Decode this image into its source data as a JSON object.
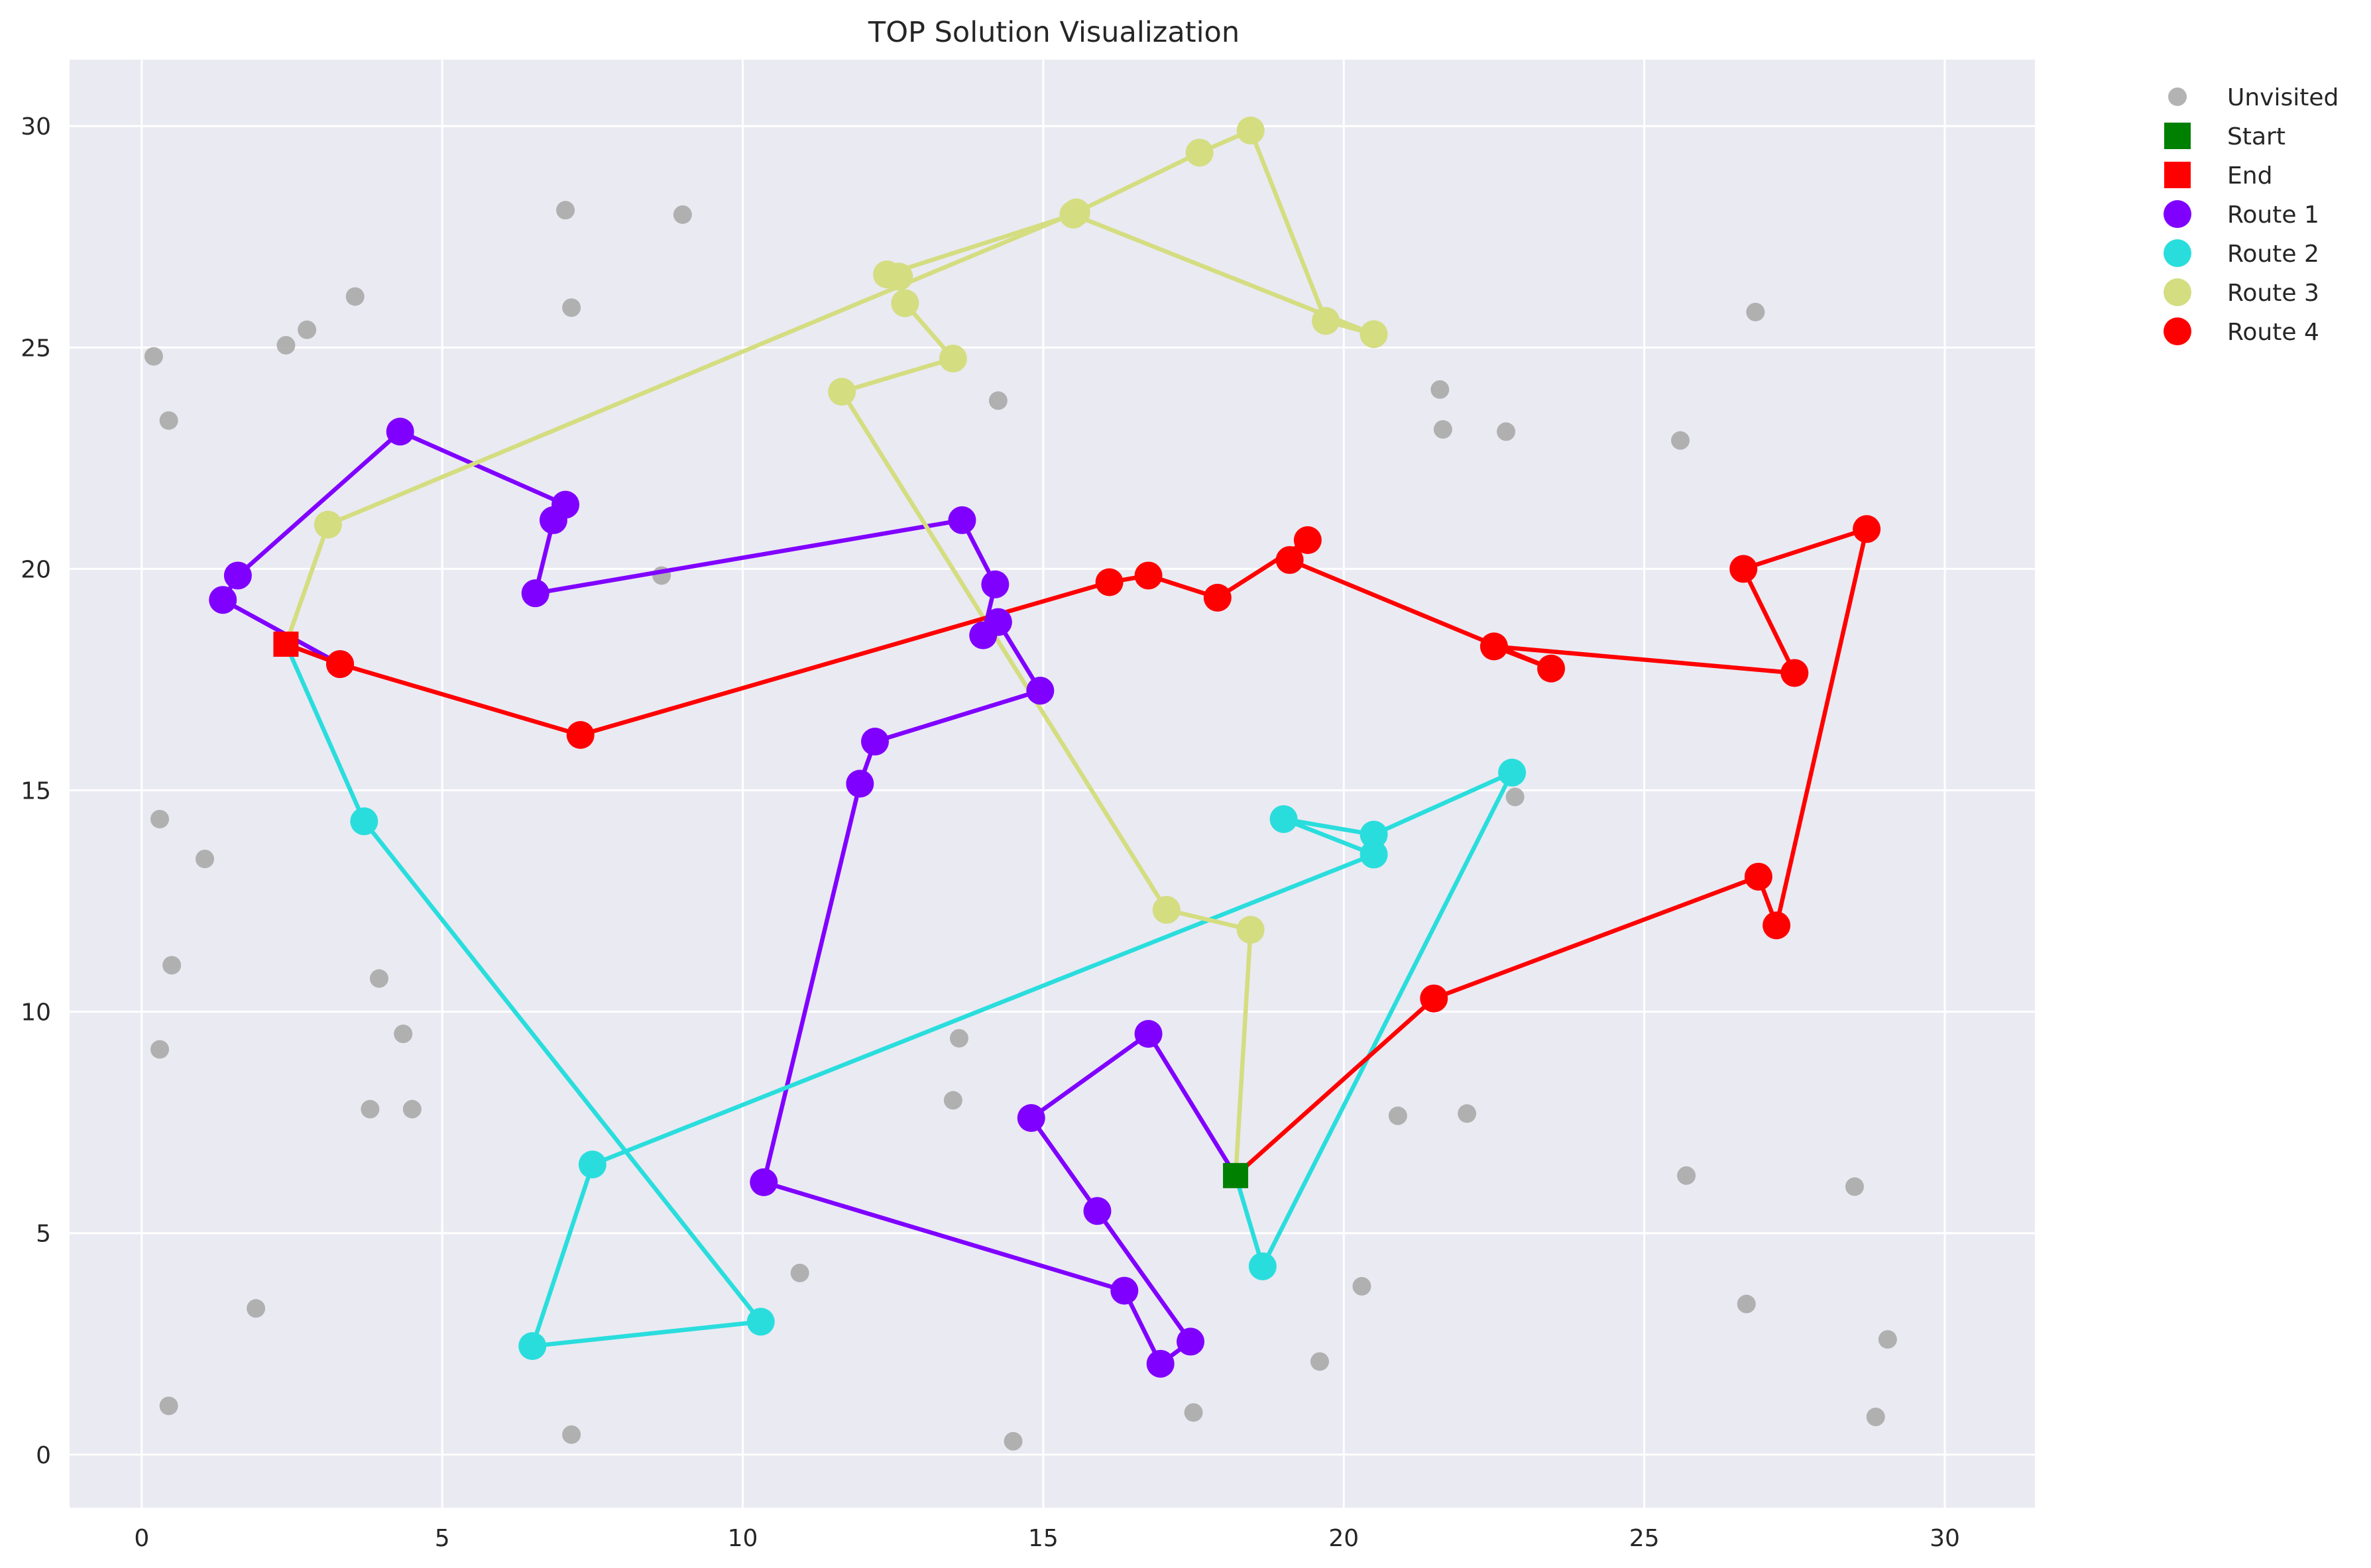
{
  "chart_data": {
    "type": "scatter",
    "title": "TOP Solution Visualization",
    "xlabel": "",
    "ylabel": "",
    "xlim": [
      -1.2,
      31.5
    ],
    "ylim": [
      -1.2,
      31.5
    ],
    "xticks": [
      0,
      5,
      10,
      15,
      20,
      25,
      30
    ],
    "yticks": [
      0,
      5,
      10,
      15,
      20,
      25,
      30
    ],
    "xtick_labels": [
      "0",
      "5",
      "10",
      "15",
      "20",
      "25",
      "30"
    ],
    "ytick_labels": [
      "0",
      "5",
      "10",
      "15",
      "20",
      "25",
      "30"
    ],
    "grid": true,
    "legend_position": "outside-top-right",
    "background_color": "#eaeaf2",
    "legend": [
      {
        "label": "Unvisited",
        "marker": "circle",
        "color": "#a6a6a6"
      },
      {
        "label": "Start",
        "marker": "square",
        "color": "#008000"
      },
      {
        "label": "End",
        "marker": "square",
        "color": "#ff0000"
      },
      {
        "label": "Route 1",
        "marker": "circle",
        "color": "#8000ff"
      },
      {
        "label": "Route 2",
        "marker": "circle",
        "color": "#2adddd"
      },
      {
        "label": "Route 3",
        "marker": "circle",
        "color": "#d4dd80"
      },
      {
        "label": "Route 4",
        "marker": "circle",
        "color": "#ff0000"
      }
    ],
    "unvisited": [
      [
        0.2,
        24.8
      ],
      [
        0.45,
        23.35
      ],
      [
        2.4,
        25.05
      ],
      [
        2.75,
        25.4
      ],
      [
        3.55,
        26.15
      ],
      [
        7.05,
        28.1
      ],
      [
        7.15,
        25.9
      ],
      [
        9.0,
        28.0
      ],
      [
        14.25,
        23.8
      ],
      [
        8.65,
        19.85
      ],
      [
        21.6,
        24.05
      ],
      [
        21.65,
        23.15
      ],
      [
        22.7,
        23.1
      ],
      [
        25.6,
        22.9
      ],
      [
        26.85,
        25.8
      ],
      [
        22.85,
        14.85
      ],
      [
        0.3,
        14.35
      ],
      [
        1.05,
        13.45
      ],
      [
        0.5,
        11.05
      ],
      [
        3.95,
        10.75
      ],
      [
        0.3,
        9.15
      ],
      [
        4.35,
        9.5
      ],
      [
        3.8,
        7.8
      ],
      [
        4.5,
        7.8
      ],
      [
        13.6,
        9.4
      ],
      [
        13.5,
        8.0
      ],
      [
        20.9,
        7.65
      ],
      [
        22.05,
        7.7
      ],
      [
        25.7,
        6.3
      ],
      [
        28.5,
        6.05
      ],
      [
        26.7,
        3.4
      ],
      [
        29.05,
        2.6
      ],
      [
        28.85,
        0.85
      ],
      [
        1.9,
        3.3
      ],
      [
        0.45,
        1.1
      ],
      [
        7.15,
        0.45
      ],
      [
        10.95,
        4.1
      ],
      [
        14.5,
        0.3
      ],
      [
        17.5,
        0.95
      ],
      [
        19.6,
        2.1
      ],
      [
        20.3,
        3.8
      ]
    ],
    "start": [
      18.2,
      6.3
    ],
    "end": [
      2.4,
      18.3
    ],
    "series": [
      {
        "name": "Route 1",
        "color": "#8000ff",
        "points": [
          [
            18.2,
            6.3
          ],
          [
            16.75,
            9.5
          ],
          [
            14.8,
            7.6
          ],
          [
            15.9,
            5.5
          ],
          [
            17.45,
            2.55
          ],
          [
            16.95,
            2.05
          ],
          [
            16.35,
            3.7
          ],
          [
            10.35,
            6.15
          ],
          [
            11.95,
            15.15
          ],
          [
            12.2,
            16.1
          ],
          [
            14.95,
            17.25
          ],
          [
            14.25,
            18.8
          ],
          [
            14.0,
            18.5
          ],
          [
            14.2,
            19.65
          ],
          [
            13.65,
            21.1
          ],
          [
            6.55,
            19.45
          ],
          [
            6.85,
            21.1
          ],
          [
            7.05,
            21.45
          ],
          [
            4.3,
            23.1
          ],
          [
            1.6,
            19.85
          ],
          [
            1.35,
            19.3
          ],
          [
            3.3,
            17.85
          ],
          [
            2.4,
            18.3
          ]
        ]
      },
      {
        "name": "Route 2",
        "color": "#2adddd",
        "points": [
          [
            18.2,
            6.3
          ],
          [
            18.65,
            4.25
          ],
          [
            22.8,
            15.4
          ],
          [
            20.5,
            14.0
          ],
          [
            19.0,
            14.35
          ],
          [
            20.5,
            13.55
          ],
          [
            7.5,
            6.55
          ],
          [
            6.5,
            2.45
          ],
          [
            10.3,
            3.0
          ],
          [
            3.7,
            14.3
          ],
          [
            2.4,
            18.3
          ]
        ]
      },
      {
        "name": "Route 3",
        "color": "#d4dd80",
        "points": [
          [
            18.2,
            6.3
          ],
          [
            18.45,
            11.85
          ],
          [
            17.05,
            12.3
          ],
          [
            11.65,
            24.0
          ],
          [
            13.5,
            24.75
          ],
          [
            12.7,
            26.0
          ],
          [
            12.6,
            26.6
          ],
          [
            12.4,
            26.65
          ],
          [
            15.5,
            28.0
          ],
          [
            20.5,
            25.3
          ],
          [
            19.7,
            25.6
          ],
          [
            18.45,
            29.9
          ],
          [
            17.6,
            29.4
          ],
          [
            15.55,
            28.05
          ],
          [
            3.1,
            21.0
          ],
          [
            2.4,
            18.3
          ]
        ]
      },
      {
        "name": "Route 4",
        "color": "#ff0000",
        "points": [
          [
            18.2,
            6.3
          ],
          [
            21.5,
            10.3
          ],
          [
            26.9,
            13.05
          ],
          [
            27.2,
            11.95
          ],
          [
            28.7,
            20.9
          ],
          [
            26.65,
            20.0
          ],
          [
            27.5,
            17.65
          ],
          [
            22.5,
            18.25
          ],
          [
            23.45,
            17.75
          ],
          [
            19.1,
            20.2
          ],
          [
            19.4,
            20.65
          ],
          [
            17.9,
            19.35
          ],
          [
            16.75,
            19.85
          ],
          [
            16.1,
            19.7
          ],
          [
            7.3,
            16.25
          ],
          [
            3.3,
            17.85
          ],
          [
            2.4,
            18.3
          ]
        ]
      }
    ]
  }
}
